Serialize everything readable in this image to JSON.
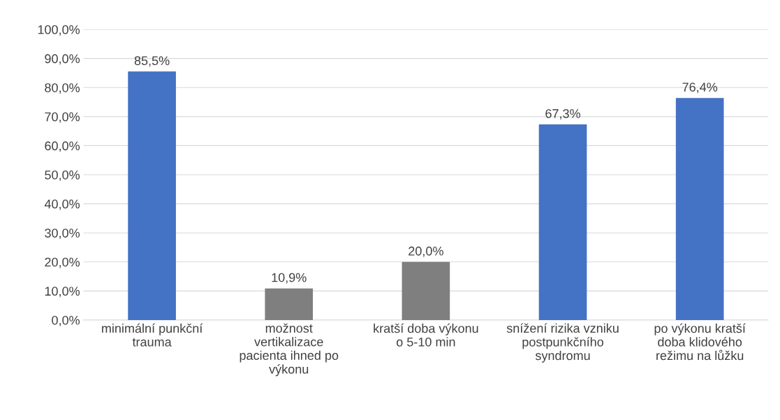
{
  "chart_data": {
    "type": "bar",
    "categories": [
      "minimální punkční\ntrauma",
      "možnost\nvertikalizace\npacienta ihned po\nvýkonu",
      "kratší doba výkonu\no 5-10 min",
      "snížení rizika vzniku\npostpunkčního\nsyndromu",
      "po výkonu kratší\ndoba klidového\nrežimu na lůžku"
    ],
    "values": [
      85.5,
      10.9,
      20.0,
      67.3,
      76.4
    ],
    "colors": [
      "#4472c4",
      "#7f7f7f",
      "#7f7f7f",
      "#4472c4",
      "#4472c4"
    ],
    "value_labels": [
      "85,5%",
      "10,9%",
      "20,0%",
      "67,3%",
      "76,4%"
    ],
    "ylim": [
      0,
      100
    ],
    "yticks": [
      {
        "value": 0,
        "label": "0,0%"
      },
      {
        "value": 10,
        "label": "10,0%"
      },
      {
        "value": 20,
        "label": "20,0%"
      },
      {
        "value": 30,
        "label": "30,0%"
      },
      {
        "value": 40,
        "label": "40,0%"
      },
      {
        "value": 50,
        "label": "50,0%"
      },
      {
        "value": 60,
        "label": "60,0%"
      },
      {
        "value": 70,
        "label": "70,0%"
      },
      {
        "value": 80,
        "label": "80,0%"
      },
      {
        "value": 90,
        "label": "90,0%"
      },
      {
        "value": 100,
        "label": "100,0%"
      }
    ],
    "grid": "y",
    "legend": false
  }
}
